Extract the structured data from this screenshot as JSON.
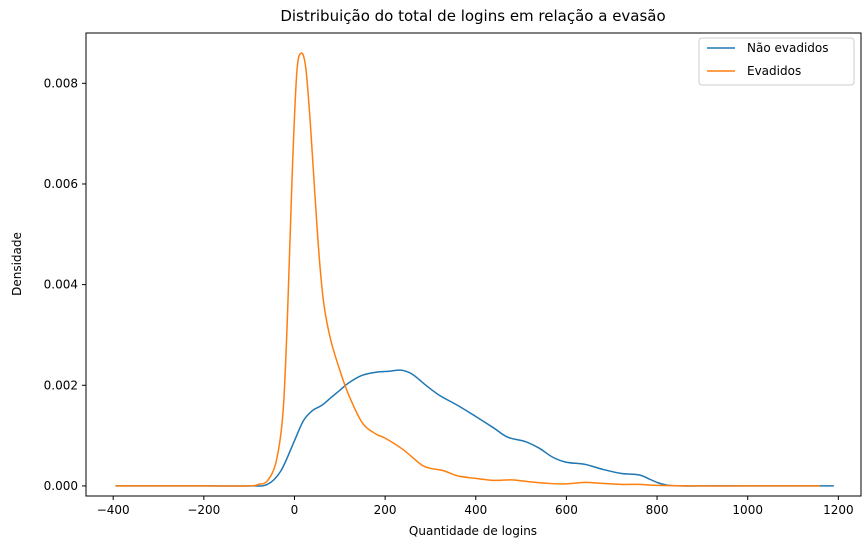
{
  "chart_data": {
    "type": "line",
    "title": "Distribuição do total de logins em relação a evasão",
    "xlabel": "Quantidade de logins",
    "ylabel": "Densidade",
    "xlim": [
      -460,
      1250
    ],
    "ylim": [
      -0.0002,
      0.009
    ],
    "xticks": [
      -400,
      -200,
      0,
      200,
      400,
      600,
      800,
      1000,
      1200
    ],
    "xtick_labels": [
      "−400",
      "−200",
      "0",
      "200",
      "400",
      "600",
      "800",
      "1000",
      "1200"
    ],
    "yticks": [
      0.0,
      0.002,
      0.004,
      0.006,
      0.008
    ],
    "ytick_labels": [
      "0.000",
      "0.002",
      "0.004",
      "0.006",
      "0.008"
    ],
    "grid": false,
    "legend_position": "top-right",
    "series": [
      {
        "name": "Não evadidos",
        "color": "#1f77b4",
        "x": [
          -395,
          -200,
          -100,
          -60,
          -30,
          0,
          20,
          40,
          60,
          80,
          100,
          120,
          150,
          180,
          210,
          235,
          260,
          290,
          320,
          360,
          400,
          440,
          470,
          510,
          540,
          570,
          600,
          640,
          680,
          720,
          760,
          780,
          800,
          820,
          850,
          900,
          1000,
          1100,
          1190
        ],
        "y": [
          0.0,
          0.0,
          0.0,
          3e-05,
          0.0003,
          0.0009,
          0.0013,
          0.0015,
          0.0016,
          0.00175,
          0.0019,
          0.00205,
          0.0022,
          0.00226,
          0.00228,
          0.0023,
          0.00222,
          0.002,
          0.0018,
          0.0016,
          0.00138,
          0.00115,
          0.00097,
          0.00088,
          0.00075,
          0.00057,
          0.00047,
          0.00043,
          0.00033,
          0.00025,
          0.00022,
          0.00015,
          7e-05,
          2e-05,
          0.0,
          0.0,
          0.0,
          0.0,
          0.0
        ]
      },
      {
        "name": "Evadidos",
        "color": "#ff7f0e",
        "x": [
          -395,
          -200,
          -100,
          -80,
          -60,
          -40,
          -25,
          -15,
          -5,
          5,
          15,
          25,
          35,
          45,
          55,
          65,
          80,
          100,
          120,
          150,
          180,
          200,
          240,
          280,
          300,
          330,
          360,
          400,
          440,
          480,
          520,
          560,
          600,
          640,
          680,
          720,
          760,
          800,
          900,
          1000,
          1160
        ],
        "y": [
          0.0,
          0.0,
          0.0,
          3e-05,
          0.0001,
          0.0005,
          0.0015,
          0.0035,
          0.0062,
          0.0082,
          0.0086,
          0.0083,
          0.0072,
          0.0058,
          0.0045,
          0.0036,
          0.0029,
          0.0023,
          0.0018,
          0.00125,
          0.00103,
          0.00095,
          0.00072,
          0.00042,
          0.00035,
          0.0003,
          0.0002,
          0.00015,
          0.00011,
          0.00012,
          8e-05,
          5e-05,
          4e-05,
          7e-05,
          5e-05,
          3e-05,
          3e-05,
          1e-05,
          0.0,
          0.0,
          0.0
        ]
      }
    ]
  }
}
